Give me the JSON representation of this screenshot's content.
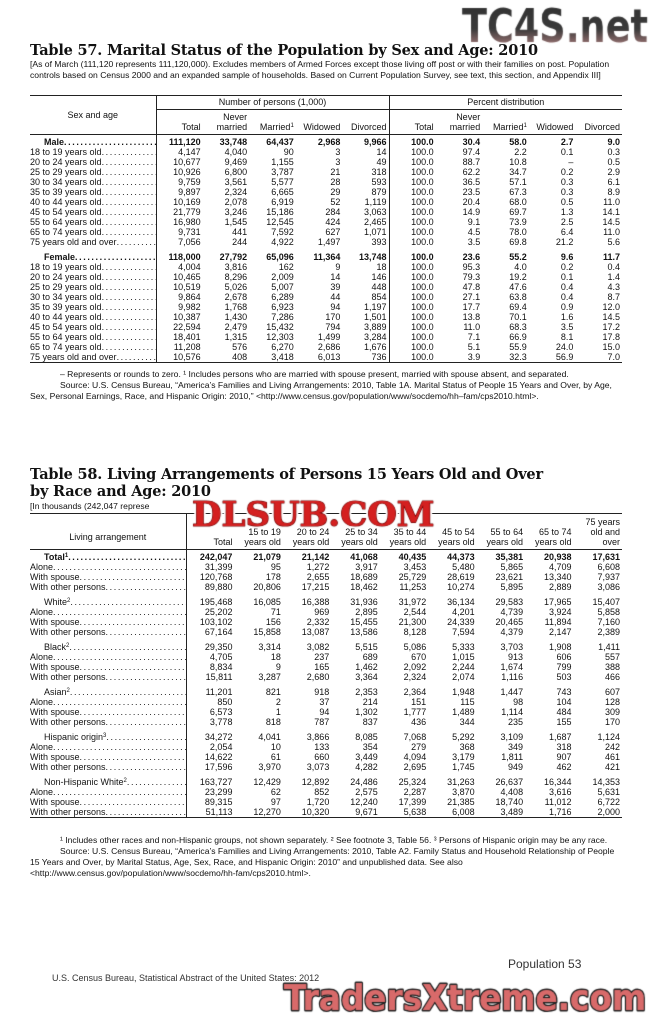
{
  "watermarks": {
    "top": "TC4S.net",
    "middle": "DLSUB.COM",
    "bottom": "TradersXtreme.com"
  },
  "table57": {
    "title": "Table 57. Marital Status of the Population by Sex and Age: 2010",
    "headnote": "[As of March (111,120 represents 111,120,000). Excludes members of Armed Forces except those living off post or with their families on post. Population controls based on Census 2000 and an expanded sample of households. Based on Current Population Survey, see text, this section, and Appendix III]",
    "stub_header": "Sex and age",
    "group_headers": [
      "Number of persons (1,000)",
      "Percent distribution"
    ],
    "columns": [
      {
        "top": "",
        "bottom": "Total"
      },
      {
        "top": "Never",
        "bottom": "married"
      },
      {
        "top": "",
        "bottom": "Married",
        "sup": "1"
      },
      {
        "top": "",
        "bottom": "Widowed"
      },
      {
        "top": "",
        "bottom": "Divorced"
      },
      {
        "top": "",
        "bottom": "Total"
      },
      {
        "top": "Never",
        "bottom": "married"
      },
      {
        "top": "",
        "bottom": "Married",
        "sup": "1"
      },
      {
        "top": "",
        "bottom": "Widowed"
      },
      {
        "top": "",
        "bottom": "Divorced"
      }
    ],
    "groups": [
      {
        "header": {
          "label": "Male",
          "values": [
            "111,120",
            "33,748",
            "64,437",
            "2,968",
            "9,966",
            "100.0",
            "30.4",
            "58.0",
            "2.7",
            "9.0"
          ]
        },
        "rows": [
          {
            "label": "18 to 19 years old",
            "values": [
              "4,147",
              "4,040",
              "90",
              "3",
              "14",
              "100.0",
              "97.4",
              "2.2",
              "0.1",
              "0.3"
            ]
          },
          {
            "label": "20 to 24 years old",
            "values": [
              "10,677",
              "9,469",
              "1,155",
              "3",
              "49",
              "100.0",
              "88.7",
              "10.8",
              "–",
              "0.5"
            ]
          },
          {
            "label": "25 to 29 years old",
            "values": [
              "10,926",
              "6,800",
              "3,787",
              "21",
              "318",
              "100.0",
              "62.2",
              "34.7",
              "0.2",
              "2.9"
            ]
          },
          {
            "label": "30 to 34 years old",
            "values": [
              "9,759",
              "3,561",
              "5,577",
              "28",
              "593",
              "100.0",
              "36.5",
              "57.1",
              "0.3",
              "6.1"
            ]
          },
          {
            "label": "35 to 39 years old",
            "values": [
              "9,897",
              "2,324",
              "6,665",
              "29",
              "879",
              "100.0",
              "23.5",
              "67.3",
              "0.3",
              "8.9"
            ]
          },
          {
            "label": "40 to 44 years old",
            "values": [
              "10,169",
              "2,078",
              "6,919",
              "52",
              "1,119",
              "100.0",
              "20.4",
              "68.0",
              "0.5",
              "11.0"
            ]
          },
          {
            "label": "45 to 54 years old",
            "values": [
              "21,779",
              "3,246",
              "15,186",
              "284",
              "3,063",
              "100.0",
              "14.9",
              "69.7",
              "1.3",
              "14.1"
            ]
          },
          {
            "label": "55 to 64 years old",
            "values": [
              "16,980",
              "1,545",
              "12,545",
              "424",
              "2,465",
              "100.0",
              "9.1",
              "73.9",
              "2.5",
              "14.5"
            ]
          },
          {
            "label": "65 to 74 years old",
            "values": [
              "9,731",
              "441",
              "7,592",
              "627",
              "1,071",
              "100.0",
              "4.5",
              "78.0",
              "6.4",
              "11.0"
            ]
          },
          {
            "label": "75 years old and over",
            "values": [
              "7,056",
              "244",
              "4,922",
              "1,497",
              "393",
              "100.0",
              "3.5",
              "69.8",
              "21.2",
              "5.6"
            ]
          }
        ]
      },
      {
        "header": {
          "label": "Female",
          "values": [
            "118,000",
            "27,792",
            "65,096",
            "11,364",
            "13,748",
            "100.0",
            "23.6",
            "55.2",
            "9.6",
            "11.7"
          ]
        },
        "rows": [
          {
            "label": "18 to 19 years old",
            "values": [
              "4,004",
              "3,816",
              "162",
              "9",
              "18",
              "100.0",
              "95.3",
              "4.0",
              "0.2",
              "0.4"
            ]
          },
          {
            "label": "20 to 24 years old",
            "values": [
              "10,465",
              "8,296",
              "2,009",
              "14",
              "146",
              "100.0",
              "79.3",
              "19.2",
              "0.1",
              "1.4"
            ]
          },
          {
            "label": "25 to 29 years old",
            "values": [
              "10,519",
              "5,026",
              "5,007",
              "39",
              "448",
              "100.0",
              "47.8",
              "47.6",
              "0.4",
              "4.3"
            ]
          },
          {
            "label": "30 to 34 years old",
            "values": [
              "9,864",
              "2,678",
              "6,289",
              "44",
              "854",
              "100.0",
              "27.1",
              "63.8",
              "0.4",
              "8.7"
            ]
          },
          {
            "label": "35 to 39 years old",
            "values": [
              "9,982",
              "1,768",
              "6,923",
              "94",
              "1,197",
              "100.0",
              "17.7",
              "69.4",
              "0.9",
              "12.0"
            ]
          },
          {
            "label": "40 to 44 years old",
            "values": [
              "10,387",
              "1,430",
              "7,286",
              "170",
              "1,501",
              "100.0",
              "13.8",
              "70.1",
              "1.6",
              "14.5"
            ]
          },
          {
            "label": "45 to 54 years old",
            "values": [
              "22,594",
              "2,479",
              "15,432",
              "794",
              "3,889",
              "100.0",
              "11.0",
              "68.3",
              "3.5",
              "17.2"
            ]
          },
          {
            "label": "55 to 64 years old",
            "values": [
              "18,401",
              "1,315",
              "12,303",
              "1,499",
              "3,284",
              "100.0",
              "7.1",
              "66.9",
              "8.1",
              "17.8"
            ]
          },
          {
            "label": "65 to 74 years old",
            "values": [
              "11,208",
              "576",
              "6,270",
              "2,686",
              "1,676",
              "100.0",
              "5.1",
              "55.9",
              "24.0",
              "15.0"
            ]
          },
          {
            "label": "75 years old and over",
            "values": [
              "10,576",
              "408",
              "3,418",
              "6,013",
              "736",
              "100.0",
              "3.9",
              "32.3",
              "56.9",
              "7.0"
            ]
          }
        ]
      }
    ],
    "footnotes": [
      "– Represents or rounds to zero. ¹ Includes persons who are married with spouse present, married with spouse absent, and separated.",
      "Source: U.S. Census Bureau, “America’s Families and Living Arrangements: 2010, Table 1A. Marital Status of People 15 Years and Over, by Age, Sex, Personal Earnings, Race, and Hispanic Origin: 2010,” <http://www.census.gov/population/www/socdemo/hh–fam/cps2010.html>."
    ]
  },
  "table58": {
    "title": "Table 58. Living Arrangements of Persons 15 Years Old and Over by Race and Age: 2010",
    "headnote": "[In thousands (242,047 represe",
    "stub_header": "Living arrangement",
    "columns": [
      {
        "top": "",
        "bottom": "Total"
      },
      {
        "top": "15 to 19",
        "bottom": "years old"
      },
      {
        "top": "20 to 24",
        "bottom": "years old"
      },
      {
        "top": "25 to 34",
        "bottom": "years old"
      },
      {
        "top": "35 to 44",
        "bottom": "years old"
      },
      {
        "top": "45 to 54",
        "bottom": "years old"
      },
      {
        "top": "55 to 64",
        "bottom": "years old"
      },
      {
        "top": "65 to 74",
        "bottom": "years old"
      },
      {
        "top": "75 years old and",
        "bottom": "over"
      }
    ],
    "groups": [
      {
        "header": {
          "label": "Total",
          "sup": "1",
          "bold": true,
          "values": [
            "242,047",
            "21,079",
            "21,142",
            "41,068",
            "40,435",
            "44,373",
            "35,381",
            "20,938",
            "17,631"
          ]
        },
        "rows": [
          {
            "label": "Alone",
            "values": [
              "31,399",
              "95",
              "1,272",
              "3,917",
              "3,453",
              "5,480",
              "5,865",
              "4,709",
              "6,608"
            ]
          },
          {
            "label": "With spouse",
            "values": [
              "120,768",
              "178",
              "2,655",
              "18,689",
              "25,729",
              "28,619",
              "23,621",
              "13,340",
              "7,937"
            ]
          },
          {
            "label": "With other persons",
            "values": [
              "89,880",
              "20,806",
              "17,215",
              "18,462",
              "11,253",
              "10,274",
              "5,895",
              "2,889",
              "3,086"
            ]
          }
        ]
      },
      {
        "header": {
          "label": "White",
          "sup": "2",
          "values": [
            "195,468",
            "16,085",
            "16,388",
            "31,936",
            "31,972",
            "36,134",
            "29,583",
            "17,965",
            "15,407"
          ]
        },
        "rows": [
          {
            "label": "Alone",
            "values": [
              "25,202",
              "71",
              "969",
              "2,895",
              "2,544",
              "4,201",
              "4,739",
              "3,924",
              "5,858"
            ]
          },
          {
            "label": "With spouse",
            "values": [
              "103,102",
              "156",
              "2,332",
              "15,455",
              "21,300",
              "24,339",
              "20,465",
              "11,894",
              "7,160"
            ]
          },
          {
            "label": "With other persons",
            "values": [
              "67,164",
              "15,858",
              "13,087",
              "13,586",
              "8,128",
              "7,594",
              "4,379",
              "2,147",
              "2,389"
            ]
          }
        ]
      },
      {
        "header": {
          "label": "Black",
          "sup": "2",
          "values": [
            "29,350",
            "3,314",
            "3,082",
            "5,515",
            "5,086",
            "5,333",
            "3,703",
            "1,908",
            "1,411"
          ]
        },
        "rows": [
          {
            "label": "Alone",
            "values": [
              "4,705",
              "18",
              "237",
              "689",
              "670",
              "1,015",
              "913",
              "606",
              "557"
            ]
          },
          {
            "label": "With spouse",
            "values": [
              "8,834",
              "9",
              "165",
              "1,462",
              "2,092",
              "2,244",
              "1,674",
              "799",
              "388"
            ]
          },
          {
            "label": "With other persons",
            "values": [
              "15,811",
              "3,287",
              "2,680",
              "3,364",
              "2,324",
              "2,074",
              "1,116",
              "503",
              "466"
            ]
          }
        ]
      },
      {
        "header": {
          "label": "Asian",
          "sup": "2",
          "values": [
            "11,201",
            "821",
            "918",
            "2,353",
            "2,364",
            "1,948",
            "1,447",
            "743",
            "607"
          ]
        },
        "rows": [
          {
            "label": "Alone",
            "values": [
              "850",
              "2",
              "37",
              "214",
              "151",
              "115",
              "98",
              "104",
              "128"
            ]
          },
          {
            "label": "With spouse",
            "values": [
              "6,573",
              "1",
              "94",
              "1,302",
              "1,777",
              "1,489",
              "1,114",
              "484",
              "309"
            ]
          },
          {
            "label": "With other persons",
            "values": [
              "3,778",
              "818",
              "787",
              "837",
              "436",
              "344",
              "235",
              "155",
              "170"
            ]
          }
        ]
      },
      {
        "header": {
          "label": "Hispanic origin",
          "sup": "3",
          "values": [
            "34,272",
            "4,041",
            "3,866",
            "8,085",
            "7,068",
            "5,292",
            "3,109",
            "1,687",
            "1,124"
          ]
        },
        "rows": [
          {
            "label": "Alone",
            "values": [
              "2,054",
              "10",
              "133",
              "354",
              "279",
              "368",
              "349",
              "318",
              "242"
            ]
          },
          {
            "label": "With spouse",
            "values": [
              "14,622",
              "61",
              "660",
              "3,449",
              "4,094",
              "3,179",
              "1,811",
              "907",
              "461"
            ]
          },
          {
            "label": "With other persons",
            "values": [
              "17,596",
              "3,970",
              "3,073",
              "4,282",
              "2,695",
              "1,745",
              "949",
              "462",
              "421"
            ]
          }
        ]
      },
      {
        "header": {
          "label": "Non-Hispanic White",
          "sup": "2",
          "values": [
            "163,727",
            "12,429",
            "12,892",
            "24,486",
            "25,324",
            "31,263",
            "26,637",
            "16,344",
            "14,353"
          ]
        },
        "rows": [
          {
            "label": "Alone",
            "values": [
              "23,299",
              "62",
              "852",
              "2,575",
              "2,287",
              "3,870",
              "4,408",
              "3,616",
              "5,631"
            ]
          },
          {
            "label": "With spouse",
            "values": [
              "89,315",
              "97",
              "1,720",
              "12,240",
              "17,399",
              "21,385",
              "18,740",
              "11,012",
              "6,722"
            ]
          },
          {
            "label": "With other persons",
            "values": [
              "51,113",
              "12,270",
              "10,320",
              "9,671",
              "5,638",
              "6,008",
              "3,489",
              "1,716",
              "2,000"
            ]
          }
        ]
      }
    ],
    "footnotes": [
      "¹ Includes other races and non-Hispanic groups, not shown separately. ² See footnote 3, Table 56. ³ Persons of Hispanic origin may be any race.",
      "Source: U.S. Census Bureau, “America’s Families and Living Arrangements: 2010, Table A2. Family Status and Household Relationship of People 15 Years and Over, by Marital Status, Age, Sex, Race, and Hispanic Origin: 2010” and unpublished data. See also <http://www.census.gov/population/www/socdemo/hh-fam/cps2010.html>."
    ]
  },
  "page_footer": {
    "left": "U.S. Census Bureau, Statistical Abstract of the United States: 2012",
    "right": "Population  53"
  }
}
